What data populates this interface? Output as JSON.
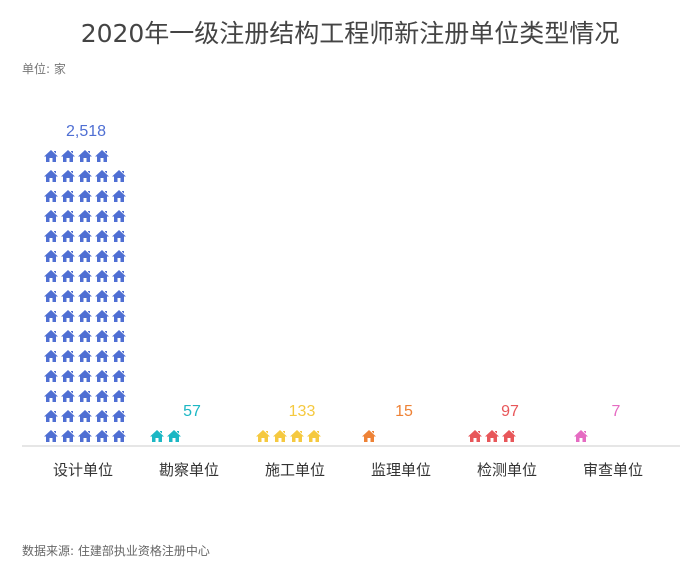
{
  "title": "2020年一级注册结构工程师新注册单位类型情况",
  "unit_label": "单位: 家",
  "source": "数据来源: 住建部执业资格注册中心",
  "chart_data": {
    "type": "pictorial-bar",
    "title": "2020年一级注册结构工程师新注册单位类型情况",
    "categories": [
      "设计单位",
      "勘察单位",
      "施工单位",
      "监理单位",
      "检测单位",
      "审查单位"
    ],
    "values": [
      2518,
      57,
      133,
      15,
      97,
      7
    ],
    "value_labels": [
      "2,518",
      "57",
      "133",
      "15",
      "97",
      "7"
    ],
    "colors": [
      "#4f6fd3",
      "#1cb7c4",
      "#f5c940",
      "#ee8236",
      "#e8575a",
      "#e56bc2"
    ],
    "symbol": "house-icon",
    "grid": false
  }
}
